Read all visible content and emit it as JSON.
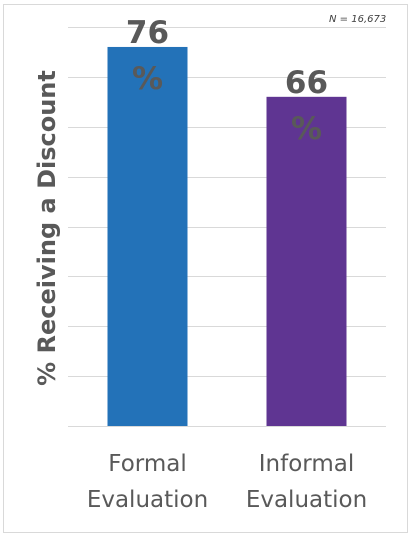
{
  "chart_data": {
    "type": "bar",
    "categories": [
      "Formal Evaluation",
      "Informal Evaluation"
    ],
    "category_lines": [
      [
        "Formal",
        "Evaluation"
      ],
      [
        "Informal",
        "Evaluation"
      ]
    ],
    "values": [
      76,
      66
    ],
    "data_labels": [
      {
        "value": "76",
        "unit": "%"
      },
      {
        "value": "66",
        "unit": "%"
      }
    ],
    "colors": [
      "#2372b8",
      "#5f3592"
    ],
    "title": "",
    "xlabel": "",
    "ylabel": "% Receiving a Discount",
    "ylim": [
      0,
      80
    ],
    "gridline_step": 10,
    "grid": true,
    "show_axis_ticks": false,
    "note": "N = 16,673"
  }
}
